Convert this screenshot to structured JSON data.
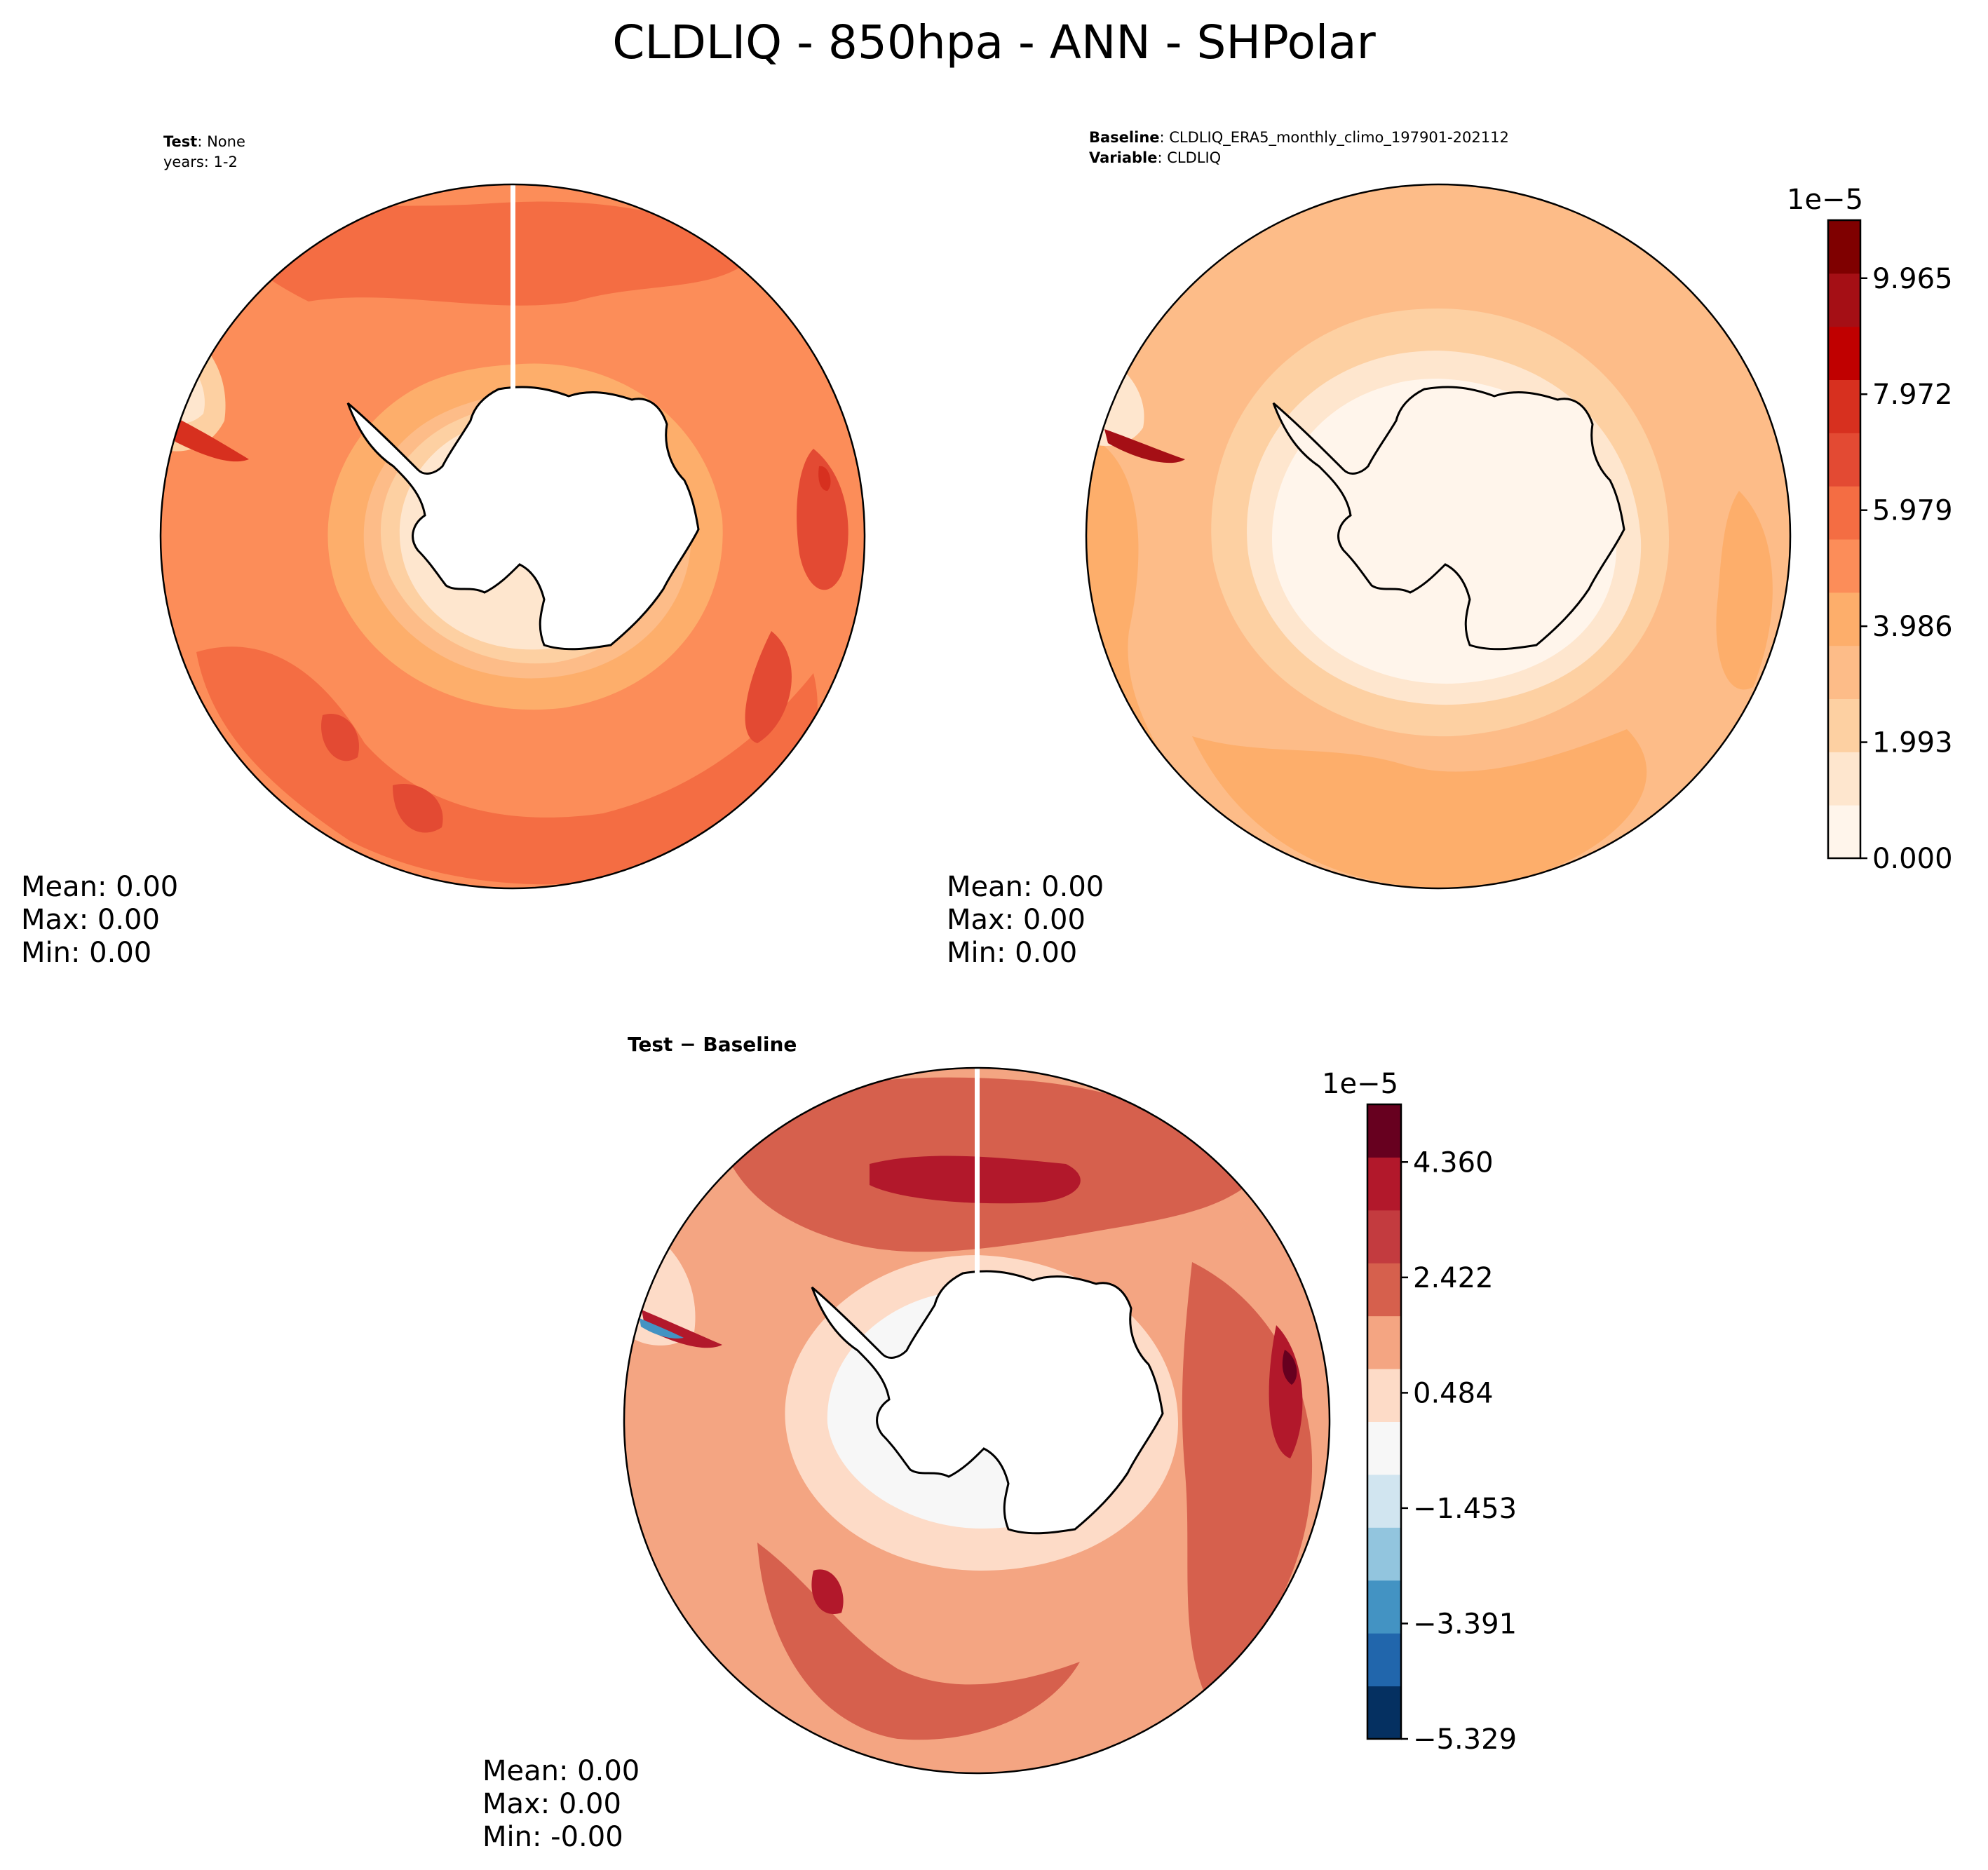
{
  "figure": {
    "title": "CLDLIQ - 850hpa - ANN - SHPolar"
  },
  "chart_data": [
    {
      "type": "contour",
      "panel": "test",
      "projection": "south polar stereographic",
      "header": {
        "key1": "Test",
        "val1": ": None",
        "line2": "years: 1-2"
      },
      "stats": {
        "mean": "Mean:  0.00",
        "max": "Max:  0.00",
        "min": "Min:  0.00"
      },
      "levels_ref": "baseline"
    },
    {
      "type": "contour",
      "panel": "baseline",
      "projection": "south polar stereographic",
      "header": {
        "key1": "Baseline",
        "val1": ": CLDLIQ_ERA5_monthly_climo_197901-202112",
        "key2": "Variable",
        "val2": ": CLDLIQ"
      },
      "stats": {
        "mean": "Mean:  0.00",
        "max": "Max:  0.00",
        "min": "Min:  0.00"
      },
      "colorbar": {
        "exponent": "1e−5",
        "range": [
          0.0,
          10.962
        ],
        "ticks": [
          0.0,
          1.993,
          3.986,
          5.979,
          7.972,
          9.965
        ],
        "tick_labels": [
          "0.000",
          "1.993",
          "3.986",
          "5.979",
          "7.972",
          "9.965"
        ],
        "colors": [
          "#fff5eb",
          "#fee6ce",
          "#fdd0a2",
          "#fdbc88",
          "#fdae6b",
          "#fc8d59",
          "#f46d43",
          "#e34a33",
          "#d7301f",
          "#c00000",
          "#a50f15",
          "#7f0000"
        ]
      }
    },
    {
      "type": "contour",
      "panel": "difference",
      "projection": "south polar stereographic",
      "header": {
        "title": "Test − Baseline"
      },
      "stats": {
        "mean": "Mean:  0.00",
        "max": "Max:  0.00",
        "min": "Min: -0.00"
      },
      "colorbar": {
        "exponent": "1e−5",
        "range": [
          -5.329,
          5.329
        ],
        "ticks": [
          -5.329,
          -3.391,
          -1.453,
          0.484,
          2.422,
          4.36
        ],
        "tick_labels": [
          "−5.329",
          "−3.391",
          "−1.453",
          "0.484",
          "2.422",
          "4.360"
        ],
        "colors": [
          "#053061",
          "#2166ac",
          "#4393c3",
          "#92c5de",
          "#d1e5f0",
          "#f7f7f7",
          "#fddbc7",
          "#f4a582",
          "#d6604d",
          "#c33b3f",
          "#b2182b",
          "#67001f"
        ]
      }
    }
  ]
}
